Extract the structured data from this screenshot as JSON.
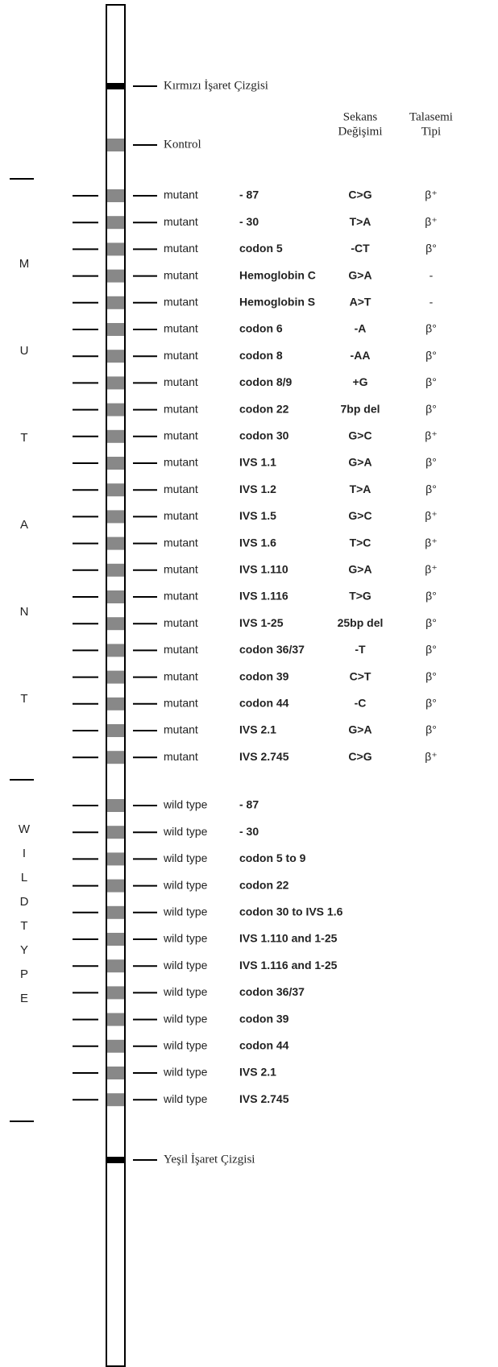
{
  "markers": {
    "top": "Kırmızı İşaret Çizgisi",
    "control": "Kontrol",
    "bottom": "Yeşil İşaret Çizgisi"
  },
  "columns": {
    "sequence_change": [
      "Sekans",
      "Değişimi"
    ],
    "thalassemia_type": [
      "Talasemi",
      "Tipi"
    ]
  },
  "side_labels": {
    "mutant": [
      "M",
      "U",
      "T",
      "A",
      "N",
      "T"
    ],
    "wild": [
      "W",
      "I",
      "L",
      "D",
      "T",
      "Y",
      "P",
      "E"
    ]
  },
  "mutant_rows": [
    {
      "label": "mutant",
      "name": "- 87",
      "change": "C>G",
      "type": "β⁺"
    },
    {
      "label": "mutant",
      "name": "- 30",
      "change": "T>A",
      "type": "β⁺"
    },
    {
      "label": "mutant",
      "name": "codon 5",
      "change": "-CT",
      "type": "β°"
    },
    {
      "label": "mutant",
      "name": "Hemoglobin C",
      "change": "G>A",
      "type": "-"
    },
    {
      "label": "mutant",
      "name": "Hemoglobin S",
      "change": "A>T",
      "type": "-"
    },
    {
      "label": "mutant",
      "name": "codon 6",
      "change": "-A",
      "type": "β°"
    },
    {
      "label": "mutant",
      "name": "codon 8",
      "change": "-AA",
      "type": "β°"
    },
    {
      "label": "mutant",
      "name": "codon 8/9",
      "change": "+G",
      "type": "β°"
    },
    {
      "label": "mutant",
      "name": "codon 22",
      "change": "7bp del",
      "type": "β°"
    },
    {
      "label": "mutant",
      "name": "codon 30",
      "change": "G>C",
      "type": "β⁺"
    },
    {
      "label": "mutant",
      "name": "IVS 1.1",
      "change": "G>A",
      "type": "β°"
    },
    {
      "label": "mutant",
      "name": "IVS 1.2",
      "change": "T>A",
      "type": "β°"
    },
    {
      "label": "mutant",
      "name": "IVS 1.5",
      "change": "G>C",
      "type": "β⁺"
    },
    {
      "label": "mutant",
      "name": "IVS 1.6",
      "change": "T>C",
      "type": "β⁺"
    },
    {
      "label": "mutant",
      "name": "IVS 1.110",
      "change": "G>A",
      "type": "β⁺"
    },
    {
      "label": "mutant",
      "name": "IVS 1.116",
      "change": "T>G",
      "type": "β°"
    },
    {
      "label": "mutant",
      "name": "IVS 1-25",
      "change": "25bp del",
      "type": "β°"
    },
    {
      "label": "mutant",
      "name": "codon 36/37",
      "change": "-T",
      "type": "β°"
    },
    {
      "label": "mutant",
      "name": "codon 39",
      "change": "C>T",
      "type": "β°"
    },
    {
      "label": "mutant",
      "name": "codon 44",
      "change": "-C",
      "type": "β°"
    },
    {
      "label": "mutant",
      "name": "IVS 2.1",
      "change": "G>A",
      "type": "β°"
    },
    {
      "label": "mutant",
      "name": "IVS 2.745",
      "change": "C>G",
      "type": "β⁺"
    }
  ],
  "wild_rows": [
    {
      "label": "wild type",
      "name": "- 87"
    },
    {
      "label": "wild type",
      "name": "- 30"
    },
    {
      "label": "wild type",
      "name": "codon 5 to 9"
    },
    {
      "label": "wild type",
      "name": "codon 22"
    },
    {
      "label": "wild type",
      "name": "codon 30 to IVS 1.6"
    },
    {
      "label": "wild type",
      "name": "IVS 1.110 and 1-25"
    },
    {
      "label": "wild type",
      "name": "IVS 1.116 and 1-25"
    },
    {
      "label": "wild type",
      "name": "codon 36/37"
    },
    {
      "label": "wild type",
      "name": "codon 39"
    },
    {
      "label": "wild type",
      "name": "codon 44"
    },
    {
      "label": "wild type",
      "name": "IVS 2.1"
    },
    {
      "label": "wild type",
      "name": "IVS 2.745"
    }
  ]
}
